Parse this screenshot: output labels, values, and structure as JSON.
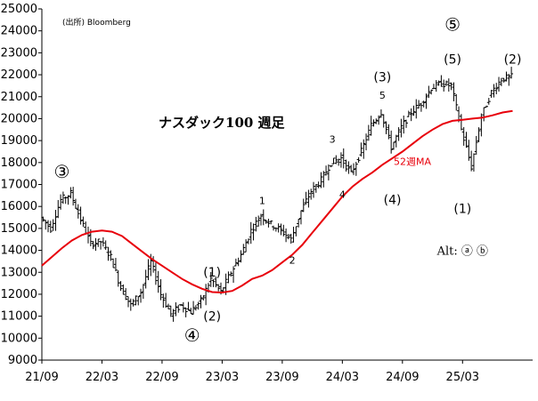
{
  "chart_data": {
    "type": "ohlc_weekly_with_ma",
    "title": "ナスダック100 週足",
    "source": "(出所) Bloomberg",
    "ylim": [
      9000,
      25000
    ],
    "yticks": [
      9000,
      10000,
      11000,
      12000,
      13000,
      14000,
      15000,
      16000,
      17000,
      18000,
      19000,
      20000,
      21000,
      22000,
      23000,
      24000,
      25000
    ],
    "xlim": [
      "2021/09",
      "2025/10"
    ],
    "xticks": [
      "21/09",
      "22/03",
      "22/09",
      "23/03",
      "23/09",
      "24/03",
      "24/09",
      "25/03"
    ],
    "series": [
      {
        "name": "52週MA",
        "color": "#e8000b",
        "points": [
          [
            "2021/09",
            13300
          ],
          [
            "2021/10",
            13700
          ],
          [
            "2021/11",
            14100
          ],
          [
            "2021/12",
            14450
          ],
          [
            "2022/01",
            14700
          ],
          [
            "2022/02",
            14850
          ],
          [
            "2022/03",
            14900
          ],
          [
            "2022/04",
            14850
          ],
          [
            "2022/05",
            14650
          ],
          [
            "2022/06",
            14300
          ],
          [
            "2022/07",
            13950
          ],
          [
            "2022/08",
            13600
          ],
          [
            "2022/09",
            13300
          ],
          [
            "2022/10",
            13000
          ],
          [
            "2022/11",
            12700
          ],
          [
            "2022/12",
            12450
          ],
          [
            "2023/01",
            12250
          ],
          [
            "2023/02",
            12100
          ],
          [
            "2023/03",
            12080
          ],
          [
            "2023/04",
            12150
          ],
          [
            "2023/05",
            12400
          ],
          [
            "2023/06",
            12700
          ],
          [
            "2023/07",
            12850
          ],
          [
            "2023/08",
            13100
          ],
          [
            "2023/09",
            13450
          ],
          [
            "2023/10",
            13800
          ],
          [
            "2023/11",
            14250
          ],
          [
            "2023/12",
            14800
          ],
          [
            "2024/01",
            15350
          ],
          [
            "2024/02",
            15900
          ],
          [
            "2024/03",
            16450
          ],
          [
            "2024/04",
            16900
          ],
          [
            "2024/05",
            17250
          ],
          [
            "2024/06",
            17550
          ],
          [
            "2024/07",
            17900
          ],
          [
            "2024/08",
            18200
          ],
          [
            "2024/09",
            18500
          ],
          [
            "2024/10",
            18850
          ],
          [
            "2024/11",
            19200
          ],
          [
            "2024/12",
            19500
          ],
          [
            "2025/01",
            19750
          ],
          [
            "2025/02",
            19900
          ],
          [
            "2025/03",
            19950
          ],
          [
            "2025/04",
            20000
          ],
          [
            "2025/05",
            20050
          ],
          [
            "2025/06",
            20150
          ],
          [
            "2025/07",
            20280
          ],
          [
            "2025/08",
            20350
          ]
        ]
      },
      {
        "name": "",
        "color": "#000000",
        "points": [
          [
            "2021/09",
            15500
          ],
          [
            "2021/10",
            15000
          ],
          [
            "2021/11",
            16300
          ],
          [
            "2021/12",
            16600
          ],
          [
            "2022/01",
            15400
          ],
          [
            "2022/02",
            14300
          ],
          [
            "2022/03",
            14400
          ],
          [
            "2022/04",
            13700
          ],
          [
            "2022/05",
            12300
          ],
          [
            "2022/06",
            11500
          ],
          [
            "2022/07",
            12100
          ],
          [
            "2022/08",
            13500
          ],
          [
            "2022/09",
            12000
          ],
          [
            "2022/10",
            11100
          ],
          [
            "2022/11",
            11500
          ],
          [
            "2022/12",
            11200
          ],
          [
            "2023/01",
            11700
          ],
          [
            "2023/02",
            12700
          ],
          [
            "2023/03",
            12100
          ],
          [
            "2023/04",
            13000
          ],
          [
            "2023/05",
            13800
          ],
          [
            "2023/06",
            14900
          ],
          [
            "2023/07",
            15600
          ],
          [
            "2023/08",
            15200
          ],
          [
            "2023/09",
            14900
          ],
          [
            "2023/10",
            14500
          ],
          [
            "2023/11",
            15800
          ],
          [
            "2023/12",
            16700
          ],
          [
            "2024/01",
            17200
          ],
          [
            "2024/02",
            18000
          ],
          [
            "2024/03",
            18200
          ],
          [
            "2024/04",
            17500
          ],
          [
            "2024/05",
            18500
          ],
          [
            "2024/06",
            19700
          ],
          [
            "2024/07",
            20300
          ],
          [
            "2024/08",
            18700
          ],
          [
            "2024/09",
            19600
          ],
          [
            "2024/10",
            20300
          ],
          [
            "2024/11",
            20700
          ],
          [
            "2024/12",
            21400
          ],
          [
            "2025/01",
            21600
          ],
          [
            "2025/02",
            21500
          ],
          [
            "2025/03",
            19500
          ],
          [
            "2025/04",
            17800
          ],
          [
            "2025/05",
            20100
          ],
          [
            "2025/06",
            21200
          ],
          [
            "2025/07",
            21800
          ],
          [
            "2025/08",
            21900
          ]
        ]
      }
    ],
    "annotations": [
      {
        "text": "③",
        "style": "big",
        "x": "2021/11",
        "y": 17300
      },
      {
        "text": "④",
        "style": "big",
        "x": "2022/12",
        "y": 9850
      },
      {
        "text": "⑤",
        "style": "big",
        "x": "2025/02",
        "y": 24000
      },
      {
        "text": "(1)",
        "style": "wave",
        "x": "2023/02",
        "y": 12800
      },
      {
        "text": "(2)",
        "style": "wave",
        "x": "2023/02",
        "y": 10800
      },
      {
        "text": "1",
        "style": "minor",
        "x": "2023/07",
        "y": 16100
      },
      {
        "text": "2",
        "style": "minor",
        "x": "2023/10",
        "y": 13400
      },
      {
        "text": "3",
        "style": "minor",
        "x": "2024/02",
        "y": 18900
      },
      {
        "text": "4",
        "style": "minor",
        "x": "2024/03",
        "y": 16400
      },
      {
        "text": "5",
        "style": "minor",
        "x": "2024/07",
        "y": 20900
      },
      {
        "text": "(3)",
        "style": "wave",
        "x": "2024/07",
        "y": 21700
      },
      {
        "text": "(4)",
        "style": "wave",
        "x": "2024/08",
        "y": 16100
      },
      {
        "text": "(5)",
        "style": "wave",
        "x": "2025/02",
        "y": 22500
      },
      {
        "text": "(1)",
        "style": "wave",
        "x": "2025/03",
        "y": 15700
      },
      {
        "text": "(2)",
        "style": "wave",
        "x": "2025/08",
        "y": 22500
      },
      {
        "text": "52週MA",
        "style": "ma",
        "x": "2024/10",
        "y": 17900
      },
      {
        "text": "Alt: ⓐ ⓑ",
        "style": "alt",
        "x": "2025/03",
        "y": 13800
      }
    ]
  }
}
